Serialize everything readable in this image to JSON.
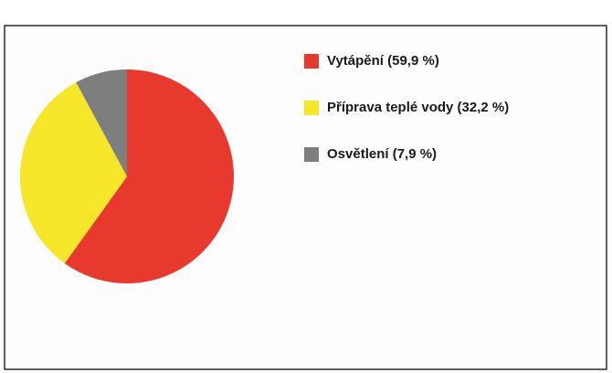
{
  "chart_data": {
    "type": "pie",
    "categories": [
      "Vytápění (59,9 %)",
      "Příprava teplé vody (32,2 %)",
      "Osvětlení (7,9 %)"
    ],
    "values": [
      59.9,
      32.2,
      7.9
    ],
    "colors": [
      "#e8392e",
      "#f5e62a",
      "#7e7e7e"
    ],
    "legend": "right"
  }
}
